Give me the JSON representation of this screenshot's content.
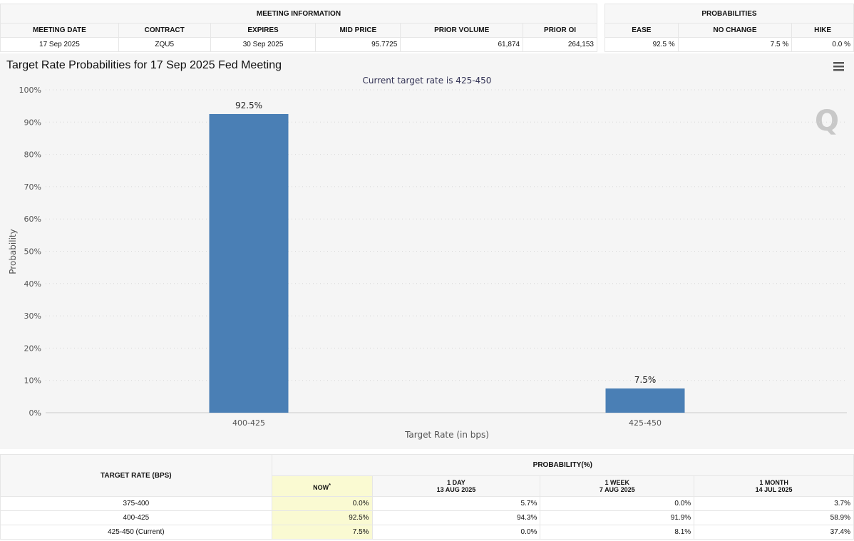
{
  "meeting_info": {
    "title": "MEETING INFORMATION",
    "headers": [
      "MEETING DATE",
      "CONTRACT",
      "EXPIRES",
      "MID PRICE",
      "PRIOR VOLUME",
      "PRIOR OI"
    ],
    "values": [
      "17 Sep 2025",
      "ZQU5",
      "30 Sep 2025",
      "95.7725",
      "61,874",
      "264,153"
    ]
  },
  "probabilities": {
    "title": "PROBABILITIES",
    "headers": [
      "EASE",
      "NO CHANGE",
      "HIKE"
    ],
    "values": [
      "92.5 %",
      "7.5 %",
      "0.0 %"
    ]
  },
  "chart_data": {
    "type": "bar",
    "title": "Target Rate Probabilities for 17 Sep 2025 Fed Meeting",
    "subtitle": "Current target rate is 425-450",
    "xlabel": "Target Rate (in bps)",
    "ylabel": "Probability",
    "categories": [
      "400-425",
      "425-450"
    ],
    "values": [
      92.5,
      7.5
    ],
    "data_labels": [
      "92.5%",
      "7.5%"
    ],
    "ylim": [
      0,
      100
    ],
    "yticks": [
      "0%",
      "10%",
      "20%",
      "30%",
      "40%",
      "50%",
      "60%",
      "70%",
      "80%",
      "90%",
      "100%"
    ],
    "grid": true,
    "bar_color": "#4a7fb5"
  },
  "bottom_table": {
    "target_rate_header": "TARGET RATE (BPS)",
    "probability_header": "PROBABILITY(%)",
    "columns": [
      {
        "label": "NOW",
        "note": "*",
        "date": ""
      },
      {
        "label": "1 DAY",
        "date": "13 AUG 2025"
      },
      {
        "label": "1 WEEK",
        "date": "7 AUG 2025"
      },
      {
        "label": "1 MONTH",
        "date": "14 JUL 2025"
      }
    ],
    "rows": [
      {
        "rate": "375-400",
        "values": [
          "0.0%",
          "5.7%",
          "0.0%",
          "3.7%"
        ]
      },
      {
        "rate": "400-425",
        "values": [
          "92.5%",
          "94.3%",
          "91.9%",
          "58.9%"
        ]
      },
      {
        "rate": "425-450 (Current)",
        "values": [
          "7.5%",
          "0.0%",
          "8.1%",
          "37.4%"
        ]
      }
    ]
  }
}
